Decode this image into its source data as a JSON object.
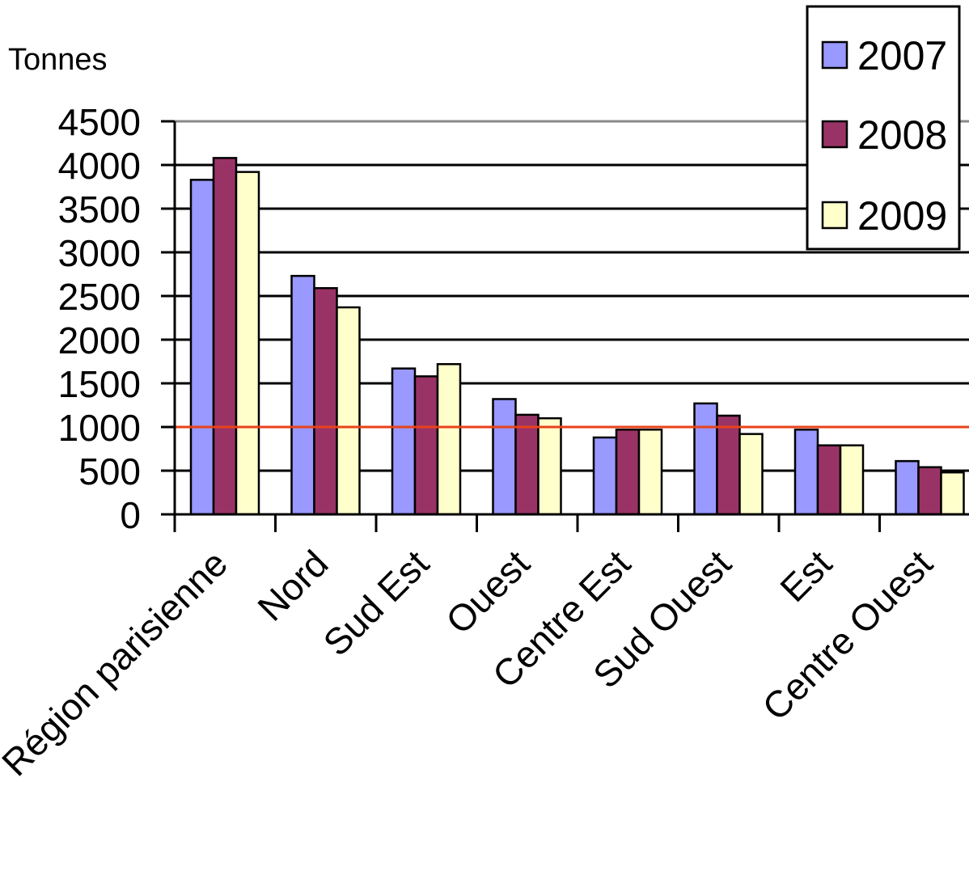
{
  "chart_data": {
    "type": "bar",
    "title": "",
    "ylabel": "Tonnes",
    "xlabel": "",
    "ylim": [
      0,
      4500
    ],
    "yticks": [
      0,
      500,
      1000,
      1500,
      2000,
      2500,
      3000,
      3500,
      4000,
      4500
    ],
    "grid": true,
    "legend_position": "top-right",
    "reference_line": {
      "value": 1000,
      "color": "#e8431a"
    },
    "categories": [
      "Région parisienne",
      "Nord",
      "Sud Est",
      "Ouest",
      "Centre Est",
      "Sud Ouest",
      "Est",
      "Centre Ouest"
    ],
    "series": [
      {
        "name": "2007",
        "color": "#9999ff",
        "values": [
          3830,
          2730,
          1670,
          1320,
          880,
          1270,
          970,
          610
        ]
      },
      {
        "name": "2008",
        "color": "#993366",
        "values": [
          4080,
          2590,
          1580,
          1140,
          970,
          1130,
          790,
          540
        ]
      },
      {
        "name": "2009",
        "color": "#ffffcc",
        "values": [
          3920,
          2370,
          1720,
          1100,
          970,
          920,
          790,
          480
        ]
      }
    ]
  }
}
